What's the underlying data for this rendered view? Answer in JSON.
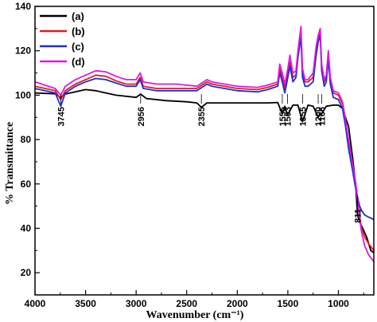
{
  "chart_data": {
    "type": "line",
    "title": "",
    "xlabel": "Wavenumber (cm⁻¹)",
    "ylabel": "% Transmittance",
    "xlim": [
      4000,
      650
    ],
    "ylim": [
      10,
      140
    ],
    "x_reversed": true,
    "x_ticks": [
      4000,
      3500,
      3000,
      2500,
      2000,
      1500,
      1000
    ],
    "y_ticks": [
      20,
      40,
      60,
      80,
      100,
      120,
      140
    ],
    "legend_position": "top-left",
    "series": [
      {
        "name": "(a)",
        "color": "#000000",
        "points": [
          [
            4000,
            101
          ],
          [
            3800,
            100.6
          ],
          [
            3750,
            99
          ],
          [
            3700,
            100.5
          ],
          [
            3500,
            102.5
          ],
          [
            3400,
            102
          ],
          [
            3200,
            100
          ],
          [
            3000,
            99
          ],
          [
            2956,
            100.5
          ],
          [
            2900,
            98.5
          ],
          [
            2700,
            97.5
          ],
          [
            2500,
            97
          ],
          [
            2400,
            96.5
          ],
          [
            2355,
            94.5
          ],
          [
            2300,
            96.5
          ],
          [
            2000,
            96.5
          ],
          [
            1700,
            96.5
          ],
          [
            1600,
            96.7
          ],
          [
            1555,
            91.5
          ],
          [
            1530,
            95
          ],
          [
            1503,
            91
          ],
          [
            1450,
            95.5
          ],
          [
            1400,
            95.5
          ],
          [
            1355,
            88
          ],
          [
            1300,
            95.5
          ],
          [
            1250,
            95
          ],
          [
            1200,
            90
          ],
          [
            1180,
            92
          ],
          [
            1166,
            91.5
          ],
          [
            1120,
            95
          ],
          [
            1050,
            95.5
          ],
          [
            1000,
            95.5
          ],
          [
            960,
            94
          ],
          [
            900,
            86
          ],
          [
            860,
            72
          ],
          [
            830,
            60
          ],
          [
            811,
            46
          ],
          [
            790,
            43
          ],
          [
            760,
            40
          ],
          [
            720,
            36
          ],
          [
            680,
            30
          ],
          [
            650,
            29
          ]
        ]
      },
      {
        "name": "(b)",
        "color": "#e41a1c",
        "points": [
          [
            4000,
            104
          ],
          [
            3800,
            102
          ],
          [
            3745,
            98
          ],
          [
            3700,
            102
          ],
          [
            3600,
            105
          ],
          [
            3500,
            107
          ],
          [
            3400,
            109
          ],
          [
            3300,
            108.5
          ],
          [
            3200,
            106.5
          ],
          [
            3100,
            105
          ],
          [
            3000,
            105
          ],
          [
            2960,
            108
          ],
          [
            2930,
            104
          ],
          [
            2800,
            103
          ],
          [
            2600,
            103
          ],
          [
            2400,
            103
          ],
          [
            2300,
            106
          ],
          [
            2250,
            105
          ],
          [
            2000,
            103
          ],
          [
            1800,
            102.5
          ],
          [
            1700,
            103.5
          ],
          [
            1600,
            105
          ],
          [
            1580,
            112
          ],
          [
            1555,
            108
          ],
          [
            1530,
            103
          ],
          [
            1500,
            110
          ],
          [
            1480,
            115
          ],
          [
            1450,
            108
          ],
          [
            1420,
            109
          ],
          [
            1400,
            118
          ],
          [
            1370,
            128
          ],
          [
            1355,
            110
          ],
          [
            1330,
            106
          ],
          [
            1300,
            106
          ],
          [
            1250,
            108
          ],
          [
            1220,
            120
          ],
          [
            1200,
            126
          ],
          [
            1180,
            128
          ],
          [
            1166,
            113
          ],
          [
            1140,
            106
          ],
          [
            1120,
            108
          ],
          [
            1100,
            118
          ],
          [
            1080,
            107
          ],
          [
            1050,
            101
          ],
          [
            1000,
            100
          ],
          [
            960,
            96
          ],
          [
            930,
            88
          ],
          [
            900,
            78
          ],
          [
            860,
            68
          ],
          [
            830,
            60
          ],
          [
            811,
            54
          ],
          [
            790,
            45
          ],
          [
            770,
            40
          ],
          [
            740,
            36
          ],
          [
            700,
            33
          ],
          [
            650,
            30
          ]
        ]
      },
      {
        "name": "(c)",
        "color": "#1f2fd0",
        "points": [
          [
            4000,
            103
          ],
          [
            3800,
            101
          ],
          [
            3745,
            95
          ],
          [
            3700,
            101
          ],
          [
            3600,
            104
          ],
          [
            3500,
            106
          ],
          [
            3400,
            107.5
          ],
          [
            3300,
            107
          ],
          [
            3200,
            105.5
          ],
          [
            3100,
            104
          ],
          [
            3000,
            104
          ],
          [
            2960,
            107
          ],
          [
            2930,
            103
          ],
          [
            2800,
            102
          ],
          [
            2600,
            102
          ],
          [
            2400,
            102
          ],
          [
            2300,
            105
          ],
          [
            2250,
            104
          ],
          [
            2000,
            102
          ],
          [
            1800,
            101.5
          ],
          [
            1700,
            102.5
          ],
          [
            1600,
            104
          ],
          [
            1580,
            110
          ],
          [
            1555,
            106
          ],
          [
            1530,
            101
          ],
          [
            1500,
            108
          ],
          [
            1480,
            113
          ],
          [
            1450,
            106
          ],
          [
            1420,
            108
          ],
          [
            1400,
            117
          ],
          [
            1370,
            126
          ],
          [
            1355,
            108
          ],
          [
            1330,
            104
          ],
          [
            1300,
            104
          ],
          [
            1250,
            106
          ],
          [
            1220,
            118
          ],
          [
            1200,
            124
          ],
          [
            1180,
            127
          ],
          [
            1166,
            111
          ],
          [
            1140,
            104
          ],
          [
            1120,
            106
          ],
          [
            1100,
            116
          ],
          [
            1080,
            105
          ],
          [
            1050,
            99
          ],
          [
            1000,
            98
          ],
          [
            960,
            94
          ],
          [
            930,
            86
          ],
          [
            900,
            76
          ],
          [
            860,
            66
          ],
          [
            830,
            58
          ],
          [
            811,
            54
          ],
          [
            790,
            50
          ],
          [
            770,
            48
          ],
          [
            740,
            46
          ],
          [
            700,
            45
          ],
          [
            650,
            44
          ]
        ]
      },
      {
        "name": "(d)",
        "color": "#e316e3",
        "points": [
          [
            4000,
            106
          ],
          [
            3800,
            103
          ],
          [
            3745,
            100
          ],
          [
            3700,
            104
          ],
          [
            3600,
            107
          ],
          [
            3500,
            109
          ],
          [
            3400,
            111
          ],
          [
            3300,
            110.5
          ],
          [
            3200,
            108.5
          ],
          [
            3100,
            107
          ],
          [
            3000,
            107
          ],
          [
            2960,
            110
          ],
          [
            2930,
            106
          ],
          [
            2800,
            105
          ],
          [
            2600,
            105
          ],
          [
            2400,
            104
          ],
          [
            2300,
            107
          ],
          [
            2250,
            106
          ],
          [
            2000,
            104
          ],
          [
            1800,
            103.5
          ],
          [
            1700,
            104.5
          ],
          [
            1600,
            106
          ],
          [
            1580,
            114
          ],
          [
            1555,
            110
          ],
          [
            1530,
            105
          ],
          [
            1500,
            112
          ],
          [
            1480,
            118
          ],
          [
            1450,
            110
          ],
          [
            1420,
            111
          ],
          [
            1400,
            120
          ],
          [
            1370,
            131
          ],
          [
            1355,
            112
          ],
          [
            1330,
            107
          ],
          [
            1300,
            107
          ],
          [
            1250,
            110
          ],
          [
            1220,
            122
          ],
          [
            1200,
            127
          ],
          [
            1180,
            130
          ],
          [
            1166,
            114
          ],
          [
            1140,
            107
          ],
          [
            1120,
            109
          ],
          [
            1100,
            120
          ],
          [
            1080,
            108
          ],
          [
            1050,
            102
          ],
          [
            1000,
            101
          ],
          [
            960,
            97
          ],
          [
            930,
            89
          ],
          [
            900,
            80
          ],
          [
            860,
            69
          ],
          [
            830,
            61
          ],
          [
            811,
            53
          ],
          [
            790,
            44
          ],
          [
            770,
            38
          ],
          [
            740,
            32
          ],
          [
            700,
            28
          ],
          [
            650,
            25
          ]
        ]
      }
    ],
    "peak_labels": [
      {
        "text": "3745",
        "x": 3745
      },
      {
        "text": "2956",
        "x": 2956
      },
      {
        "text": "2355",
        "x": 2355
      },
      {
        "text": "1555",
        "x": 1555
      },
      {
        "text": "1503",
        "x": 1503
      },
      {
        "text": "1355",
        "x": 1355
      },
      {
        "text": "1200",
        "x": 1200
      },
      {
        "text": "1166",
        "x": 1166
      },
      {
        "text": "811",
        "x": 811
      }
    ]
  }
}
